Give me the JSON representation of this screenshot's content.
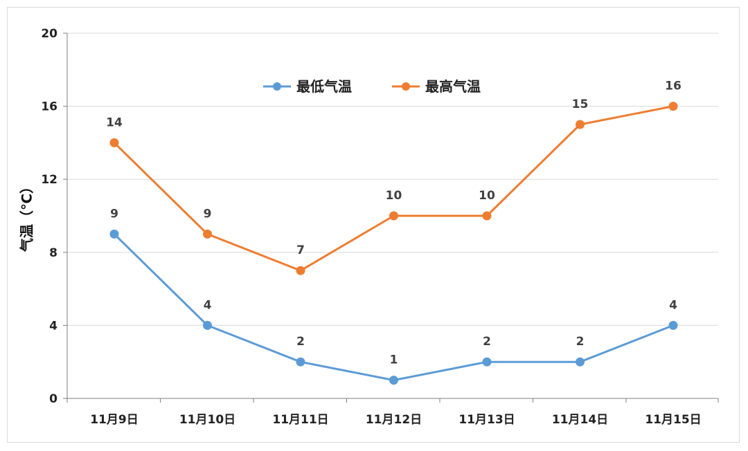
{
  "chart_data": {
    "type": "line",
    "categories": [
      "11月9日",
      "11月10日",
      "11月11日",
      "11月12日",
      "11月13日",
      "11月14日",
      "11月15日"
    ],
    "series": [
      {
        "name": "最低气温",
        "color": "#5b9bd5",
        "values": [
          9,
          4,
          2,
          1,
          2,
          2,
          4
        ]
      },
      {
        "name": "最高气温",
        "color": "#ed7d31",
        "values": [
          14,
          9,
          7,
          10,
          10,
          15,
          16
        ]
      }
    ],
    "ylabel": "气温（℃）",
    "xlabel": "",
    "ylim": [
      0,
      20
    ],
    "yticks": [
      0,
      4,
      8,
      12,
      16,
      20
    ],
    "grid": true,
    "legend_position": "top-center",
    "data_labels": true
  }
}
